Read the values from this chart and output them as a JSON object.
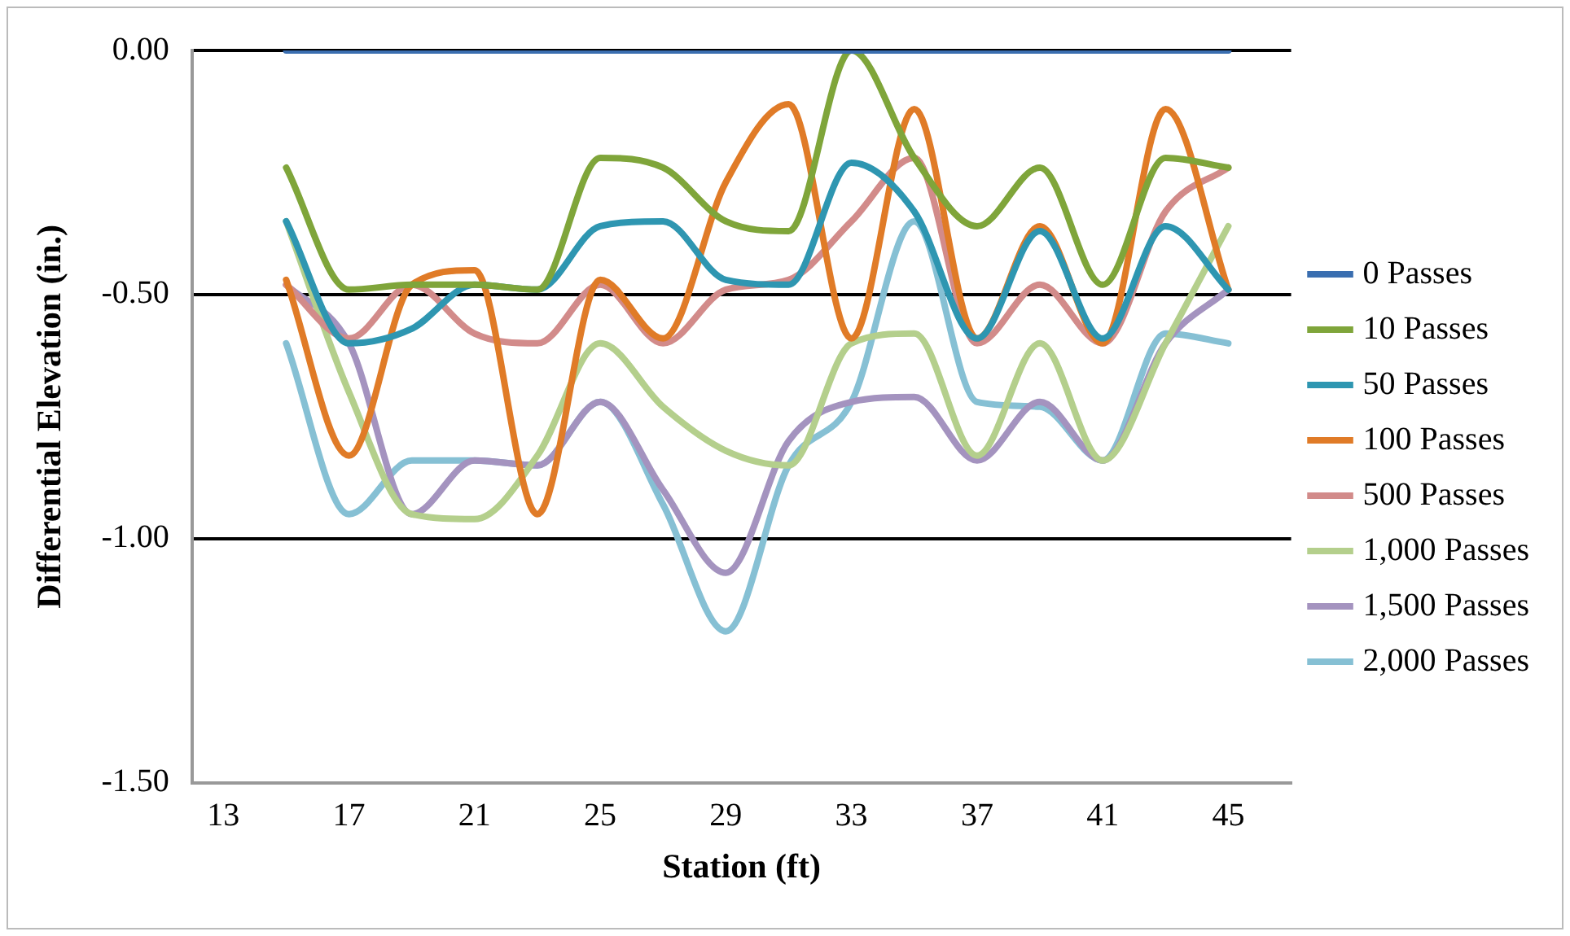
{
  "chart_data": {
    "type": "line",
    "xlabel": "Station (ft)",
    "ylabel": "Differential Elevation (in.)",
    "x": [
      15,
      17,
      19,
      21,
      23,
      25,
      27,
      29,
      31,
      33,
      35,
      37,
      39,
      41,
      43,
      45
    ],
    "series": [
      {
        "name": "0 Passes",
        "color": "#3a6eb0",
        "values": [
          0,
          0,
          0,
          0,
          0,
          0,
          0,
          0,
          0,
          0,
          0,
          0,
          0,
          0,
          0,
          0
        ]
      },
      {
        "name": "10 Passes",
        "color": "#7fa53a",
        "values": [
          -0.24,
          -0.49,
          -0.48,
          -0.48,
          -0.49,
          -0.22,
          -0.24,
          -0.35,
          -0.37,
          0,
          -0.22,
          -0.36,
          -0.24,
          -0.48,
          -0.22,
          -0.24
        ]
      },
      {
        "name": "50 Passes",
        "color": "#2e96b1",
        "values": [
          -0.35,
          -0.6,
          -0.57,
          -0.48,
          -0.49,
          -0.36,
          -0.35,
          -0.47,
          -0.48,
          -0.23,
          -0.33,
          -0.59,
          -0.37,
          -0.59,
          -0.36,
          -0.49
        ]
      },
      {
        "name": "100 Passes",
        "color": "#e07b27",
        "values": [
          -0.47,
          -0.83,
          -0.48,
          -0.45,
          -0.95,
          -0.47,
          -0.59,
          -0.27,
          -0.11,
          -0.59,
          -0.12,
          -0.59,
          -0.36,
          -0.6,
          -0.12,
          -0.49
        ]
      },
      {
        "name": "500 Passes",
        "color": "#d28b8a",
        "values": [
          -0.48,
          -0.59,
          -0.48,
          -0.58,
          -0.6,
          -0.48,
          -0.6,
          -0.49,
          -0.47,
          -0.35,
          -0.22,
          -0.6,
          -0.48,
          -0.6,
          -0.33,
          -0.24
        ]
      },
      {
        "name": "1,000 Passes",
        "color": "#b4cf8c",
        "values": [
          -0.35,
          -0.7,
          -0.95,
          -0.96,
          -0.83,
          -0.6,
          -0.73,
          -0.82,
          -0.85,
          -0.6,
          -0.58,
          -0.83,
          -0.6,
          -0.84,
          -0.6,
          -0.36
        ]
      },
      {
        "name": "1,500 Passes",
        "color": "#a493bf",
        "values": [
          -0.48,
          -0.6,
          -0.95,
          -0.84,
          -0.85,
          -0.72,
          -0.9,
          -1.07,
          -0.8,
          -0.72,
          -0.71,
          -0.84,
          -0.72,
          -0.84,
          -0.6,
          -0.49
        ]
      },
      {
        "name": "2,000 Passes",
        "color": "#86c0d4",
        "values": [
          -0.6,
          -0.95,
          -0.84,
          -0.84,
          -0.85,
          -0.72,
          -0.93,
          -1.19,
          -0.85,
          -0.72,
          -0.35,
          -0.72,
          -0.73,
          -0.84,
          -0.58,
          -0.6
        ]
      }
    ],
    "xlim": [
      12,
      47
    ],
    "xticks": [
      13,
      17,
      21,
      25,
      29,
      33,
      37,
      41,
      45
    ],
    "ylim": [
      -1.5,
      0
    ],
    "yticks": [
      {
        "value": -1.5,
        "label": "-1.50"
      },
      {
        "value": -1,
        "label": "-1.00"
      },
      {
        "value": -0.5,
        "label": "-0.50"
      },
      {
        "value": 0,
        "label": "0.00"
      }
    ],
    "grid": "y",
    "legend": "right",
    "marker": "none",
    "line_style": "solid"
  }
}
